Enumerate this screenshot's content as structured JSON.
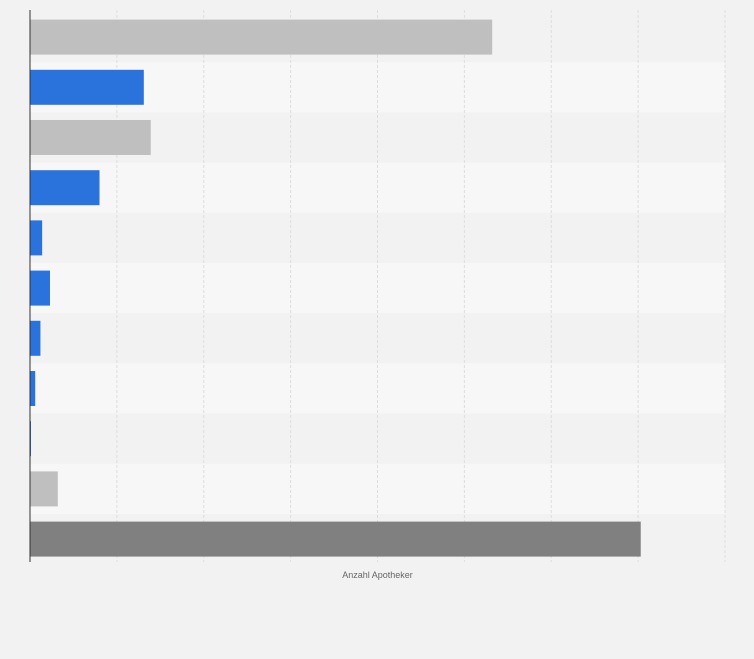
{
  "chart_data": {
    "type": "bar",
    "orientation": "horizontal",
    "xlabel": "Anzahl Apotheker",
    "ylabel": "",
    "xlim": [
      0,
      8
    ],
    "grid": true,
    "legend": "none",
    "categories": [
      "",
      "",
      "",
      "",
      "",
      "",
      "",
      "",
      "",
      "",
      ""
    ],
    "values": [
      5.32,
      1.31,
      1.39,
      0.8,
      0.14,
      0.23,
      0.12,
      0.06,
      0.01,
      0.32,
      7.03
    ],
    "bar_colors": [
      "#bfbfbf",
      "#2a72dc",
      "#bfbfbf",
      "#2a72dc",
      "#2a72dc",
      "#2a72dc",
      "#2a72dc",
      "#2a72dc",
      "#2a72dc",
      "#bfbfbf",
      "#808080"
    ]
  },
  "colors": {
    "background": "#f2f2f2",
    "row_alt": "#f7f7f7",
    "grid": "#dddddd",
    "axis": "#333333"
  }
}
